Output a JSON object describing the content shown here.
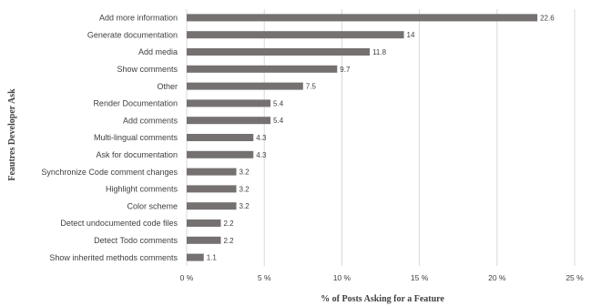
{
  "chart_data": {
    "type": "bar",
    "orientation": "horizontal",
    "categories": [
      "Add more information",
      "Generate documentation",
      "Add media",
      "Show comments",
      "Other",
      "Render Documentation",
      "Add comments",
      "Multi-lingual comments",
      "Ask for documentation",
      "Synchronize Code comment changes",
      "Highlight comments",
      "Color scheme",
      "Detect undocumented code files",
      "Detect Todo comments",
      "Show inherited methods comments"
    ],
    "values": [
      22.6,
      14,
      11.8,
      9.7,
      7.5,
      5.4,
      5.4,
      4.3,
      4.3,
      3.2,
      3.2,
      3.2,
      2.2,
      2.2,
      1.1
    ],
    "data_labels": [
      "22.6",
      "14",
      "11.8",
      "9.7",
      "7.5",
      "5.4",
      "5.4",
      "4.3",
      "4.3",
      "3.2",
      "3.2",
      "3.2",
      "2.2",
      "2.2",
      "1.1"
    ],
    "xlabel": "% of Posts Asking for a Feature",
    "ylabel": "Feautres Developer Ask",
    "xlim": [
      0,
      25
    ],
    "xticks": [
      0,
      5,
      10,
      15,
      20,
      25
    ],
    "xtick_labels": [
      "0 %",
      "5 %",
      "10 %",
      "15 %",
      "20 %",
      "25 %"
    ],
    "grid": true,
    "legend": "none",
    "bar_color": "#767171",
    "grid_color": "#d9d9d9"
  }
}
